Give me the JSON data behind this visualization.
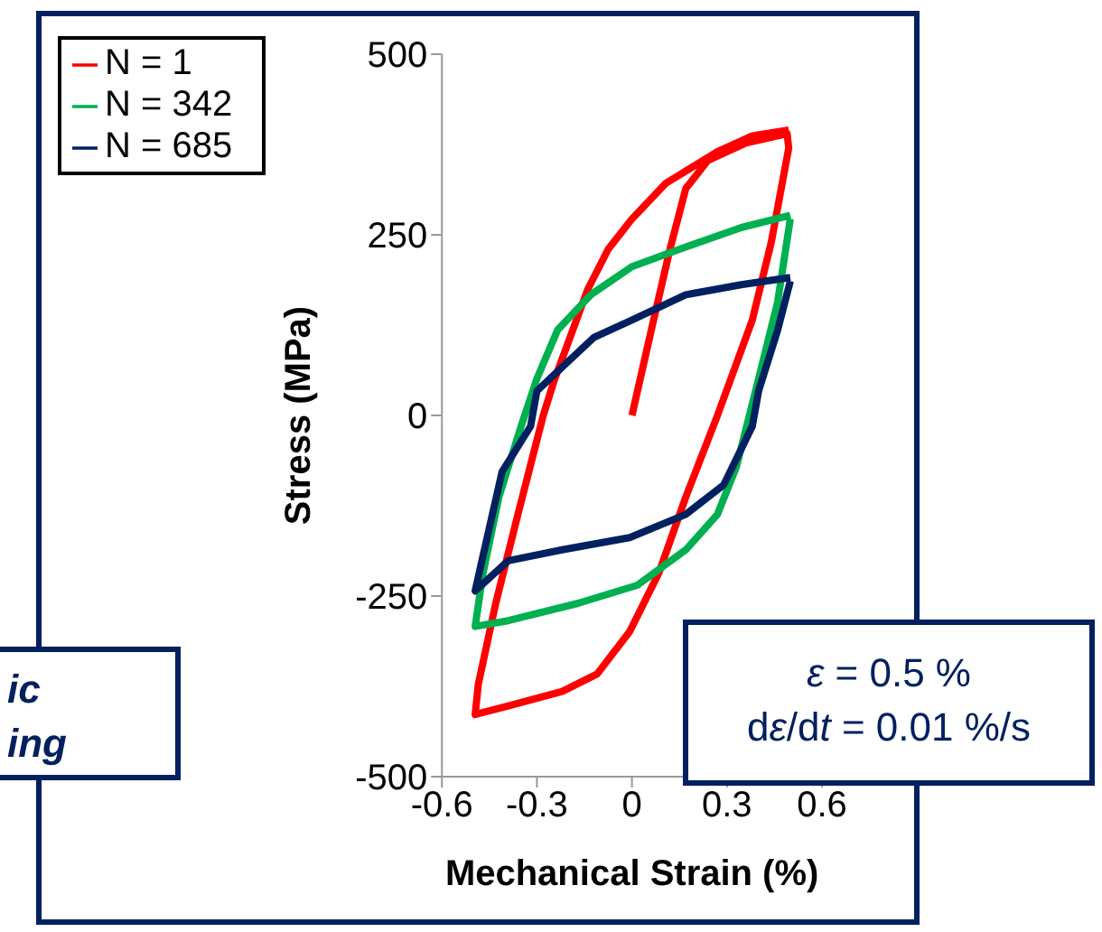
{
  "chart_data": {
    "type": "line",
    "xlabel": "Mechanical Strain (%)",
    "ylabel": "Stress (MPa)",
    "xlim": [
      -0.6,
      0.6
    ],
    "xticks": [
      -0.6,
      -0.3,
      0,
      0.3,
      0.6
    ],
    "ylim": [
      -500,
      500
    ],
    "yticks": [
      -500,
      -250,
      0,
      250,
      500
    ],
    "grid": false,
    "legend": "top left",
    "marker": "none",
    "line_style": "solid",
    "annotations": [
      "ic",
      "ing",
      "ε = 0.5 %",
      "dε/dt = 0.01 %/s"
    ],
    "series": [
      {
        "name": "N = 1",
        "color": "#ff0000",
        "x": [
          0,
          0.061,
          0.12,
          0.17,
          0.24,
          0.36,
          0.49,
          0.495,
          0.44,
          0.38,
          0.27,
          0.17,
          0.085,
          -0.007,
          -0.11,
          -0.22,
          -0.39,
          -0.495,
          -0.485,
          -0.43,
          -0.36,
          -0.28,
          -0.245,
          -0.14,
          -0.075,
          0,
          0.106,
          0.27,
          0.38,
          0.495
        ],
        "values": [
          0,
          118,
          230,
          314,
          353,
          377,
          390,
          370,
          240,
          132,
          0,
          -113,
          -218,
          -299,
          -358,
          -382,
          -402,
          -414,
          -372,
          -260,
          -137,
          0,
          49,
          174,
          230,
          272,
          321,
          365,
          387,
          395
        ]
      },
      {
        "name": "N = 342",
        "color": "#00b050",
        "x": [
          0.5,
          0.46,
          0.4,
          0.33,
          0.27,
          0.17,
          0.017,
          -0.17,
          -0.39,
          -0.495,
          -0.47,
          -0.42,
          -0.35,
          -0.3,
          -0.235,
          -0.13,
          0,
          0.15,
          0.345,
          0.5
        ],
        "values": [
          272,
          157,
          51,
          -71,
          -137,
          -186,
          -235,
          -260,
          -284,
          -292,
          -218,
          -113,
          -15,
          51,
          118,
          167,
          206,
          230,
          260,
          277
        ]
      },
      {
        "name": "N = 685",
        "color": "#002060",
        "x": [
          0.5,
          0.46,
          0.4,
          0.38,
          0.29,
          0.17,
          -0.007,
          -0.22,
          -0.39,
          -0.495,
          -0.47,
          -0.41,
          -0.32,
          -0.3,
          -0.21,
          -0.12,
          0,
          0.17,
          0.345,
          0.5
        ],
        "values": [
          186,
          118,
          34,
          -15,
          -96,
          -137,
          -169,
          -186,
          -201,
          -243,
          -194,
          -78,
          -15,
          34,
          71,
          108,
          132,
          167,
          181,
          191
        ]
      }
    ]
  }
}
